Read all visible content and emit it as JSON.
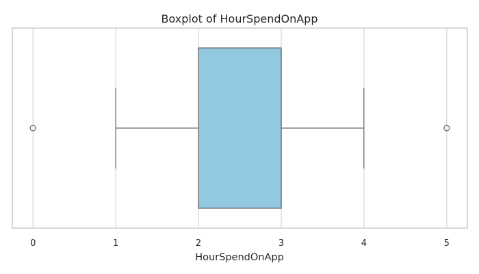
{
  "chart_data": {
    "type": "boxplot",
    "title": "Boxplot of HourSpendOnApp",
    "xlabel": "HourSpendOnApp",
    "ylabel": "",
    "orientation": "horizontal",
    "xlim": [
      -0.25,
      5.25
    ],
    "xticks": [
      0,
      1,
      2,
      3,
      4,
      5
    ],
    "grid": true,
    "box": {
      "whisker_low": 1,
      "q1": 2,
      "median": 3,
      "q3": 3,
      "whisker_high": 4,
      "outliers": [
        0,
        5
      ]
    },
    "colors": {
      "box_fill": "#92c9e0",
      "box_edge": "#6b6b6b",
      "grid": "#d5d5d5",
      "spine": "#cccccc"
    }
  }
}
